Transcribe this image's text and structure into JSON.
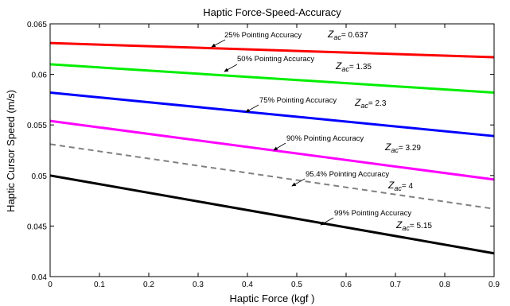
{
  "chart_data": {
    "type": "line",
    "title": "Haptic Force-Speed-Accuracy",
    "xlabel": "Haptic Force (kgf )",
    "ylabel": "Haptic Cursor Speed (m/s)",
    "xlim": [
      0,
      0.9
    ],
    "ylim": [
      0.04,
      0.065
    ],
    "xticks": [
      0,
      0.1,
      0.2,
      0.3,
      0.4,
      0.5,
      0.6,
      0.7,
      0.8,
      0.9
    ],
    "xtick_labels": [
      "0",
      "0.1",
      "0.2",
      "0.3",
      "0.4",
      "0.5",
      "0.6",
      "0.7",
      "0.8",
      "0.9"
    ],
    "yticks": [
      0.04,
      0.045,
      0.05,
      0.055,
      0.06,
      0.065
    ],
    "ytick_labels": [
      "0.04",
      "0.045",
      "0.05",
      "0.055",
      "0.06",
      "0.065"
    ],
    "grid": false,
    "legend": "none",
    "series": [
      {
        "x": [
          0,
          0.9
        ],
        "values": [
          0.0631,
          0.0617
        ],
        "color": "#ff0000",
        "style": "solid",
        "label": "25% Pointing Accuracy",
        "z_value": "0.637"
      },
      {
        "x": [
          0,
          0.9
        ],
        "values": [
          0.061,
          0.0582
        ],
        "color": "#00ee00",
        "style": "solid",
        "label": "50% Pointing Accuracy",
        "z_value": "1.35"
      },
      {
        "x": [
          0,
          0.9
        ],
        "values": [
          0.0582,
          0.0539
        ],
        "color": "#0000ff",
        "style": "solid",
        "label": "75% Pointing Accuracy",
        "z_value": "2.3"
      },
      {
        "x": [
          0,
          0.9
        ],
        "values": [
          0.0554,
          0.0496
        ],
        "color": "#ff00ff",
        "style": "solid",
        "label": "90% Pointing Accuracy",
        "z_value": "3.29"
      },
      {
        "x": [
          0,
          0.9
        ],
        "values": [
          0.0531,
          0.0467
        ],
        "color": "#808080",
        "style": "dashed",
        "label": "95.4% Pointing Accuracy",
        "z_value": "4"
      },
      {
        "x": [
          0,
          0.9
        ],
        "values": [
          0.05,
          0.0423
        ],
        "color": "#000000",
        "style": "solid",
        "label": "99% Pointing Accuracy",
        "z_value": "5.15"
      }
    ],
    "z_prefix": "Z",
    "z_subscript": "ac",
    "z_suffix": "="
  }
}
